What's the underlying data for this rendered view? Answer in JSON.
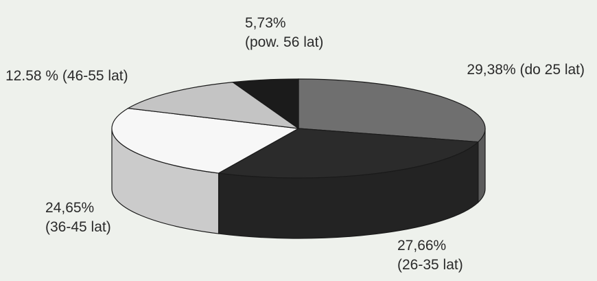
{
  "chart_data": {
    "type": "pie",
    "style": "3d",
    "slices": [
      {
        "value": 29.38,
        "text": [
          "29,38% (do 25 lat)"
        ],
        "color": "#6f6f6f"
      },
      {
        "value": 27.66,
        "text": [
          "27,66%",
          "(26-35 lat)"
        ],
        "color": "#2b2b2b"
      },
      {
        "value": 24.65,
        "text": [
          "24,65%",
          "(36-45 lat)"
        ],
        "color": "#f7f7f7"
      },
      {
        "value": 12.58,
        "text": [
          "12.58 % (46-55 lat)"
        ],
        "color": "#c4c4c4"
      },
      {
        "value": 5.73,
        "text": [
          "5,73%",
          "(pow. 56 lat)"
        ],
        "color": "#1b1b1b"
      }
    ]
  }
}
